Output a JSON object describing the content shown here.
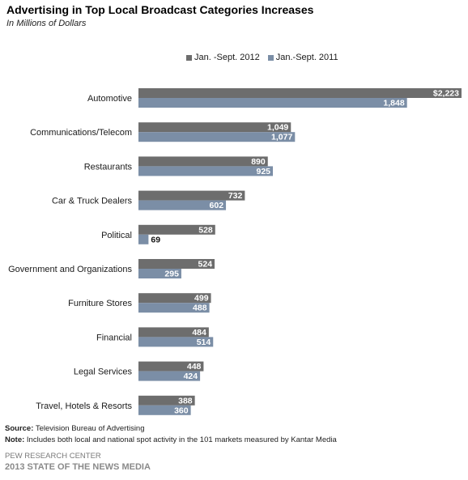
{
  "header": {
    "title": "Advertising in Top Local Broadcast Categories Increases",
    "subtitle": "In Millions of Dollars"
  },
  "colors": {
    "series_2012": "#6d6d6d",
    "series_2011": "#7b8ea6"
  },
  "chart_data": {
    "type": "bar",
    "orientation": "horizontal",
    "categories": [
      "Automotive",
      "Communications/Telecom",
      "Restaurants",
      "Car & Truck Dealers",
      "Political",
      "Government and Organizations",
      "Furniture Stores",
      "Financial",
      "Legal Services",
      "Travel, Hotels & Resorts"
    ],
    "series": [
      {
        "name": "Jan. -Sept. 2012",
        "values": [
          2223,
          1049,
          890,
          732,
          528,
          524,
          499,
          484,
          448,
          388
        ],
        "labels": [
          "$2,223",
          "1,049",
          "890",
          "732",
          "528",
          "524",
          "499",
          "484",
          "448",
          "388"
        ]
      },
      {
        "name": "Jan.-Sept. 2011",
        "values": [
          1848,
          1077,
          925,
          602,
          69,
          295,
          488,
          514,
          424,
          360
        ],
        "labels": [
          "1,848",
          "1,077",
          "925",
          "602",
          "69",
          "295",
          "488",
          "514",
          "424",
          "360"
        ]
      }
    ],
    "xlim": [
      0,
      2223
    ],
    "grid": false,
    "legend": "top"
  },
  "footer": {
    "source_label": "Source:",
    "source_text": " Television Bureau of Advertising",
    "note_label": "Note:",
    "note_text": " Includes both local and  national spot activity in the 101 markets measured by Kantar Media",
    "credit_org": "PEW RESEARCH CENTER",
    "credit_report": "2013 STATE OF THE NEWS MEDIA"
  }
}
